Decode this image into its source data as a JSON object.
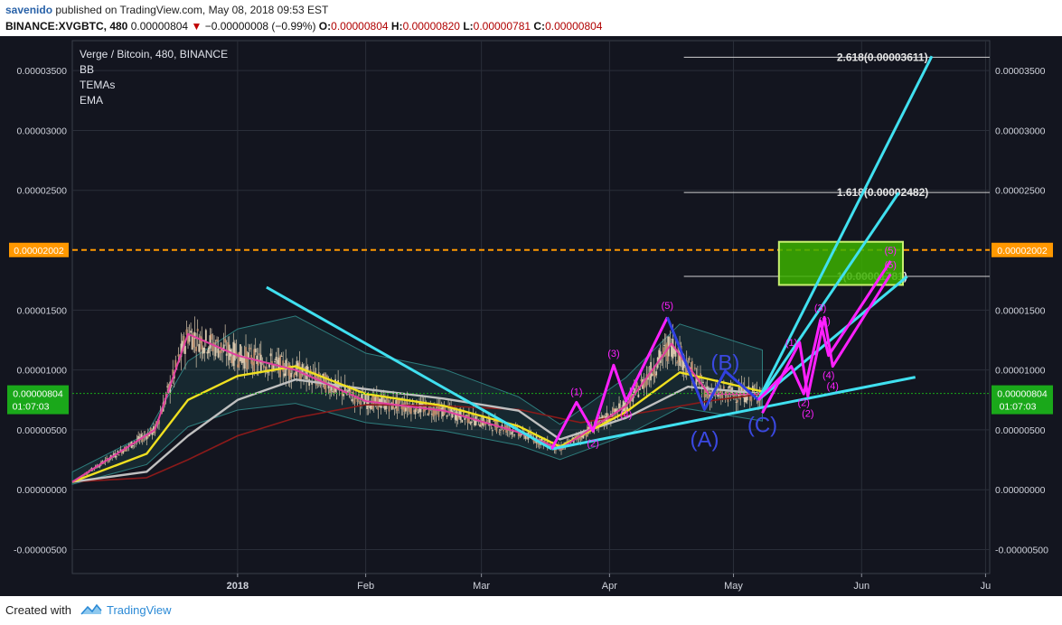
{
  "header": {
    "user": "savenido",
    "published": "published on TradingView.com, May 08, 2018 09:53 EST",
    "symbol_line": "BINANCE:XVGBTC, 480",
    "last": "0.00000804",
    "change": "−0.00000008 (−0.99%)",
    "o_label": "O:",
    "o_value": "0.00000804",
    "h_label": "H:",
    "h_value": "0.00000820",
    "l_label": "L:",
    "l_value": "0.00000781",
    "c_label": "C:",
    "c_value": "0.00000804"
  },
  "legend": {
    "title": "Verge / Bitcoin, 480, BINANCE",
    "indicators": [
      "BB",
      "TEMAs",
      "EMA"
    ]
  },
  "footer": {
    "created_with": "Created with",
    "brand": "TradingView"
  },
  "colors": {
    "background": "#13151f",
    "grid": "#2a2e39",
    "candle": "#d8c7ad",
    "ema_red": "#8b1a1a",
    "tema_gray": "#c0c0c0",
    "tema_yellow": "#f0e020",
    "tema_pink": "#e040a0",
    "bb": "#2e7d7d",
    "trend_cyan": "#40e0f0",
    "wave_magenta": "#ff20ff",
    "wave_blue": "#3040e0",
    "resistance_orange": "#ff9800",
    "current_green": "#1aa81a",
    "target_box": "#3cb000"
  },
  "chart_data": {
    "type": "line",
    "title": "Verge / Bitcoin, 480, BINANCE",
    "y_ticks": [
      "0.00003500",
      "0.00003000",
      "0.00002500",
      "0.00001500",
      "0.00001000",
      "0.00000500",
      "0.00000000",
      "-0.00000500"
    ],
    "y_tick_values": [
      3.5e-05,
      3e-05,
      2.5e-05,
      1.5e-05,
      1e-05,
      5e-06,
      0,
      -5e-06
    ],
    "ylim": [
      -7e-06,
      3.75e-05
    ],
    "x_ticks": [
      {
        "label": "2018",
        "date": "2018-01-01"
      },
      {
        "label": "Feb",
        "date": "2018-02-01"
      },
      {
        "label": "Mar",
        "date": "2018-03-01"
      },
      {
        "label": "Apr",
        "date": "2018-04-01"
      },
      {
        "label": "May",
        "date": "2018-05-01"
      },
      {
        "label": "Jun",
        "date": "2018-06-01"
      },
      {
        "label": "Ju",
        "date": "2018-07-01"
      }
    ],
    "xlim": [
      "2017-11-22",
      "2018-07-02"
    ],
    "current_price": {
      "value": 8.04e-06,
      "label": "0.00000804",
      "countdown": "01:07:03"
    },
    "resistance": {
      "value": 2.002e-05,
      "label": "0.00002002"
    },
    "fib_levels": [
      {
        "label": "2.618(0.00003611)",
        "value": 3.611e-05
      },
      {
        "label": "1.618(0.00002482)",
        "value": 2.482e-05
      },
      {
        "label": "1(0.00001781)",
        "value": 1.781e-05
      }
    ],
    "series": [
      {
        "name": "EMA",
        "color": "#8b1a1a",
        "points": [
          [
            "2017-11-22",
            6.5e-07
          ],
          [
            "2017-12-10",
            1e-06
          ],
          [
            "2017-12-20",
            2.5e-06
          ],
          [
            "2018-01-01",
            4.5e-06
          ],
          [
            "2018-01-15",
            6e-06
          ],
          [
            "2018-02-01",
            7.1e-06
          ],
          [
            "2018-02-20",
            7e-06
          ],
          [
            "2018-03-10",
            6.7e-06
          ],
          [
            "2018-03-25",
            5.6e-06
          ],
          [
            "2018-04-10",
            6.5e-06
          ],
          [
            "2018-04-25",
            7.4e-06
          ],
          [
            "2018-05-08",
            8e-06
          ]
        ]
      },
      {
        "name": "TEMA gray",
        "color": "#c0c0c0",
        "points": [
          [
            "2017-11-22",
            6.5e-07
          ],
          [
            "2017-12-10",
            1.5e-06
          ],
          [
            "2017-12-20",
            4.5e-06
          ],
          [
            "2018-01-01",
            7.5e-06
          ],
          [
            "2018-01-15",
            9.2e-06
          ],
          [
            "2018-02-01",
            8.4e-06
          ],
          [
            "2018-02-20",
            7.6e-06
          ],
          [
            "2018-03-10",
            6.6e-06
          ],
          [
            "2018-03-20",
            4.2e-06
          ],
          [
            "2018-04-05",
            6e-06
          ],
          [
            "2018-04-20",
            8.6e-06
          ],
          [
            "2018-05-08",
            8e-06
          ]
        ]
      },
      {
        "name": "TEMA yellow",
        "color": "#f0e020",
        "points": [
          [
            "2017-11-22",
            6.5e-07
          ],
          [
            "2017-12-10",
            3e-06
          ],
          [
            "2017-12-20",
            7.5e-06
          ],
          [
            "2018-01-01",
            9.5e-06
          ],
          [
            "2018-01-15",
            1.03e-05
          ],
          [
            "2018-02-01",
            8e-06
          ],
          [
            "2018-02-20",
            7e-06
          ],
          [
            "2018-03-10",
            5.3e-06
          ],
          [
            "2018-03-20",
            3.6e-06
          ],
          [
            "2018-04-05",
            6.5e-06
          ],
          [
            "2018-04-18",
            9.8e-06
          ],
          [
            "2018-05-08",
            8.2e-06
          ]
        ]
      },
      {
        "name": "TEMA pink",
        "color": "#e040a0",
        "points": [
          [
            "2017-11-22",
            6.5e-07
          ],
          [
            "2017-12-12",
            5e-06
          ],
          [
            "2017-12-20",
            1.3e-05
          ],
          [
            "2018-01-01",
            1.12e-05
          ],
          [
            "2018-01-15",
            1e-05
          ],
          [
            "2018-02-01",
            7.4e-06
          ],
          [
            "2018-02-20",
            6.6e-06
          ],
          [
            "2018-03-10",
            4.8e-06
          ],
          [
            "2018-03-20",
            3.4e-06
          ],
          [
            "2018-04-05",
            7e-06
          ],
          [
            "2018-04-16",
            1.22e-05
          ],
          [
            "2018-04-25",
            8e-06
          ],
          [
            "2018-05-08",
            8e-06
          ]
        ]
      }
    ],
    "trendlines": [
      {
        "name": "cyan-descending",
        "points": [
          [
            "2018-01-08",
            1.69e-05
          ],
          [
            "2018-03-18",
            3.4e-06
          ]
        ]
      },
      {
        "name": "cyan-lower-support",
        "points": [
          [
            "2018-03-18",
            3.4e-06
          ],
          [
            "2018-06-14",
            9.4e-06
          ]
        ]
      },
      {
        "name": "cyan-fan-1",
        "points": [
          [
            "2018-05-07",
            7.5e-06
          ],
          [
            "2018-06-18",
            3.62e-05
          ]
        ]
      },
      {
        "name": "cyan-fan-2",
        "points": [
          [
            "2018-05-07",
            7.5e-06
          ],
          [
            "2018-06-10",
            2.48e-05
          ]
        ]
      },
      {
        "name": "cyan-fan-3",
        "points": [
          [
            "2018-05-07",
            7.5e-06
          ],
          [
            "2018-06-12",
            1.78e-05
          ]
        ]
      },
      {
        "name": "magenta-impulse",
        "points": [
          [
            "2018-03-18",
            3.4e-06
          ],
          [
            "2018-03-24",
            7.3e-06
          ],
          [
            "2018-03-28",
            4.9e-06
          ],
          [
            "2018-04-02",
            1.04e-05
          ],
          [
            "2018-04-05",
            7.4e-06
          ],
          [
            "2018-04-15",
            1.44e-05
          ]
        ]
      },
      {
        "name": "blue-abc",
        "points": [
          [
            "2018-04-15",
            1.44e-05
          ],
          [
            "2018-04-24",
            6.7e-06
          ],
          [
            "2018-04-29",
            9.9e-06
          ],
          [
            "2018-05-07",
            7.5e-06
          ]
        ]
      },
      {
        "name": "magenta-projection-1",
        "points": [
          [
            "2018-05-07",
            7.5e-06
          ],
          [
            "2018-05-15",
            1.03e-05
          ],
          [
            "2018-05-18",
            8e-06
          ],
          [
            "2018-05-22",
            1.41e-05
          ],
          [
            "2018-05-24",
            1.12e-05
          ],
          [
            "2018-06-08",
            1.91e-05
          ]
        ]
      },
      {
        "name": "magenta-projection-2",
        "points": [
          [
            "2018-05-08",
            6.4e-06
          ],
          [
            "2018-05-17",
            1.23e-05
          ],
          [
            "2018-05-19",
            7.8e-06
          ],
          [
            "2018-05-23",
            1.44e-05
          ],
          [
            "2018-05-25",
            1.03e-05
          ],
          [
            "2018-06-08",
            1.8e-05
          ]
        ]
      }
    ],
    "wave_labels": [
      {
        "label": "(1)",
        "date": "2018-03-24",
        "value": 8.2e-06,
        "color": "#ff20ff"
      },
      {
        "label": "(2)",
        "date": "2018-03-28",
        "value": 3.9e-06,
        "color": "#ff20ff"
      },
      {
        "label": "(3)",
        "date": "2018-04-02",
        "value": 1.14e-05,
        "color": "#ff20ff"
      },
      {
        "label": "(4)",
        "date": "2018-04-05",
        "value": 6.3e-06,
        "color": "#ff20ff"
      },
      {
        "label": "(5)",
        "date": "2018-04-15",
        "value": 1.54e-05,
        "color": "#ff20ff"
      },
      {
        "label": "(A)",
        "date": "2018-04-24",
        "value": 4.2e-06,
        "color": "#3a48e0",
        "big": true
      },
      {
        "label": "(B)",
        "date": "2018-04-29",
        "value": 1.06e-05,
        "color": "#3a48e0",
        "big": true
      },
      {
        "label": "(C)",
        "date": "2018-05-08",
        "value": 5.4e-06,
        "color": "#3a48e0",
        "big": true
      },
      {
        "label": "(1)",
        "date": "2018-05-15",
        "value": 1.23e-05,
        "color": "#ff20ff"
      },
      {
        "label": "(2)",
        "date": "2018-05-18",
        "value": 7.3e-06,
        "color": "#ff20ff"
      },
      {
        "label": "(2)",
        "date": "2018-05-19",
        "value": 6.4e-06,
        "color": "#ff20ff"
      },
      {
        "label": "(3)",
        "date": "2018-05-22",
        "value": 1.52e-05,
        "color": "#ff20ff"
      },
      {
        "label": "(3)",
        "date": "2018-05-23",
        "value": 1.41e-05,
        "color": "#ff20ff"
      },
      {
        "label": "(4)",
        "date": "2018-05-24",
        "value": 9.6e-06,
        "color": "#ff20ff"
      },
      {
        "label": "(4)",
        "date": "2018-05-25",
        "value": 8.7e-06,
        "color": "#ff20ff"
      },
      {
        "label": "(5)",
        "date": "2018-06-08",
        "value": 2e-05,
        "color": "#ff20ff"
      },
      {
        "label": "(5)",
        "date": "2018-06-08",
        "value": 1.88e-05,
        "color": "#ff20ff"
      }
    ],
    "target_box": {
      "date_from": "2018-05-12",
      "date_to": "2018-06-11",
      "value_from": 1.71e-05,
      "value_to": 2.07e-05
    }
  }
}
